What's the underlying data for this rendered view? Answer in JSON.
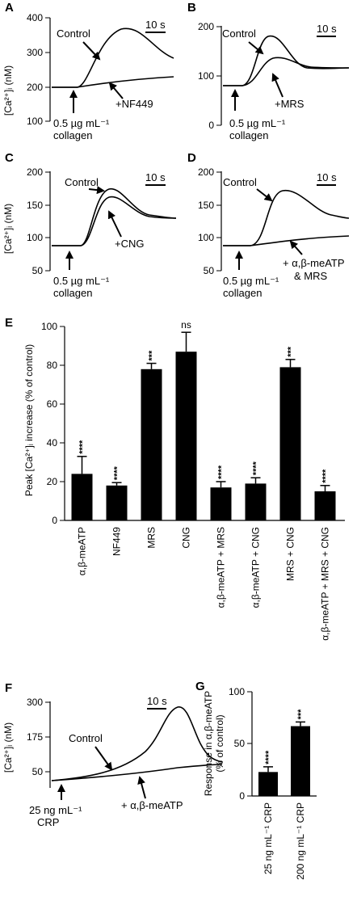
{
  "panels": {
    "A": {
      "label": "A",
      "ylabel": "[Ca²⁺]ᵢ (nM)",
      "ylim": [
        100,
        400
      ],
      "yticks": [
        "400",
        "300",
        "200",
        "100"
      ],
      "scale": "10 s",
      "control": "Control",
      "treatment": "+NF449",
      "stim1": "0.5 µg mL⁻¹",
      "stim2": "collagen"
    },
    "B": {
      "label": "B",
      "ylim": [
        0,
        200
      ],
      "yticks": [
        "200",
        "100",
        "0"
      ],
      "scale": "10 s",
      "control": "Control",
      "treatment": "+MRS",
      "stim1": "0.5 µg mL⁻¹",
      "stim2": "collagen"
    },
    "C": {
      "label": "C",
      "ylabel": "[Ca²⁺]ᵢ (nM)",
      "ylim": [
        50,
        200
      ],
      "yticks": [
        "200",
        "150",
        "100",
        "50"
      ],
      "scale": "10 s",
      "control": "Control",
      "treatment": "+CNG",
      "stim1": "0.5 µg mL⁻¹",
      "stim2": "collagen"
    },
    "D": {
      "label": "D",
      "ylim": [
        50,
        200
      ],
      "yticks": [
        "200",
        "150",
        "100",
        "50"
      ],
      "scale": "10 s",
      "control": "Control",
      "treatment1": "+ α,β-meATP",
      "treatment2": "& MRS",
      "stim1": "0.5 µg mL⁻¹",
      "stim2": "collagen"
    },
    "E": {
      "label": "E",
      "ylabel": "Peak [Ca²⁺]ᵢ increase (% of control)",
      "yticks": [
        "100",
        "80",
        "60",
        "40",
        "20",
        "0"
      ]
    },
    "F": {
      "label": "F",
      "ylabel": "[Ca²⁺]ᵢ (nM)",
      "ylim": [
        0,
        300
      ],
      "yticks": [
        "300",
        "175",
        "50"
      ],
      "scale": "10 s",
      "control": "Control",
      "treatment": "+ α,β-meATP",
      "stim1": "25 ng mL⁻¹",
      "stim2": "CRP"
    },
    "G": {
      "label": "G",
      "ylabel1": "Response in α,β-meATP",
      "ylabel2": "(% of control)",
      "yticks": [
        "100",
        "50",
        "0"
      ]
    }
  },
  "chart_data": [
    {
      "panel": "E",
      "type": "bar",
      "categories": [
        "α,β-meATP",
        "NF449",
        "MRS",
        "CNG",
        "α,β-meATP + MRS",
        "α,β-meATP + CNG",
        "MRS + CNG",
        "α,β-meATP + MRS + CNG"
      ],
      "values": [
        24,
        18,
        78,
        87,
        17,
        19,
        79,
        15
      ],
      "errors": [
        9,
        1.5,
        3,
        10,
        3,
        3,
        4,
        3
      ],
      "significance": [
        "****",
        "****",
        "***",
        "ns",
        "****",
        "****",
        "***",
        "****"
      ],
      "ylim": [
        0,
        100
      ],
      "ylabel": "Peak [Ca²⁺]ᵢ increase (% of control)"
    },
    {
      "panel": "G",
      "type": "bar",
      "categories": [
        "25 ng mL⁻¹ CRP",
        "200 ng mL⁻¹ CRP"
      ],
      "values": [
        23,
        67
      ],
      "errors": [
        5,
        4
      ],
      "significance": [
        "****",
        "***"
      ],
      "ylim": [
        0,
        100
      ],
      "ylabel": "Response in α,β-meATP (% of control)"
    },
    {
      "panel": "A",
      "type": "line",
      "ylim": [
        100,
        400
      ],
      "series": [
        {
          "name": "Control",
          "peak": 365,
          "baseline": 190,
          "end": 280
        },
        {
          "name": "+NF449",
          "peak": 225,
          "baseline": 190,
          "end": 225
        }
      ]
    },
    {
      "panel": "B",
      "type": "line",
      "ylim": [
        0,
        200
      ],
      "series": [
        {
          "name": "Control",
          "peak": 180,
          "baseline": 75,
          "end": 118
        },
        {
          "name": "+MRS",
          "peak": 135,
          "baseline": 75,
          "end": 115
        }
      ]
    },
    {
      "panel": "C",
      "type": "line",
      "ylim": [
        50,
        200
      ],
      "series": [
        {
          "name": "Control",
          "peak": 175,
          "baseline": 85,
          "end": 130
        },
        {
          "name": "+CNG",
          "peak": 160,
          "baseline": 85,
          "end": 128
        }
      ]
    },
    {
      "panel": "D",
      "type": "line",
      "ylim": [
        50,
        200
      ],
      "series": [
        {
          "name": "Control",
          "peak": 185,
          "baseline": 95,
          "end": 138
        },
        {
          "name": "+ α,β-meATP & MRS",
          "peak": 113,
          "baseline": 95,
          "end": 113
        }
      ]
    },
    {
      "panel": "F",
      "type": "line",
      "ylim": [
        0,
        300
      ],
      "series": [
        {
          "name": "Control",
          "peak": 250,
          "baseline": 35,
          "end": 80
        },
        {
          "name": "+ α,β-meATP",
          "peak": 80,
          "baseline": 35,
          "end": 80
        }
      ]
    }
  ]
}
